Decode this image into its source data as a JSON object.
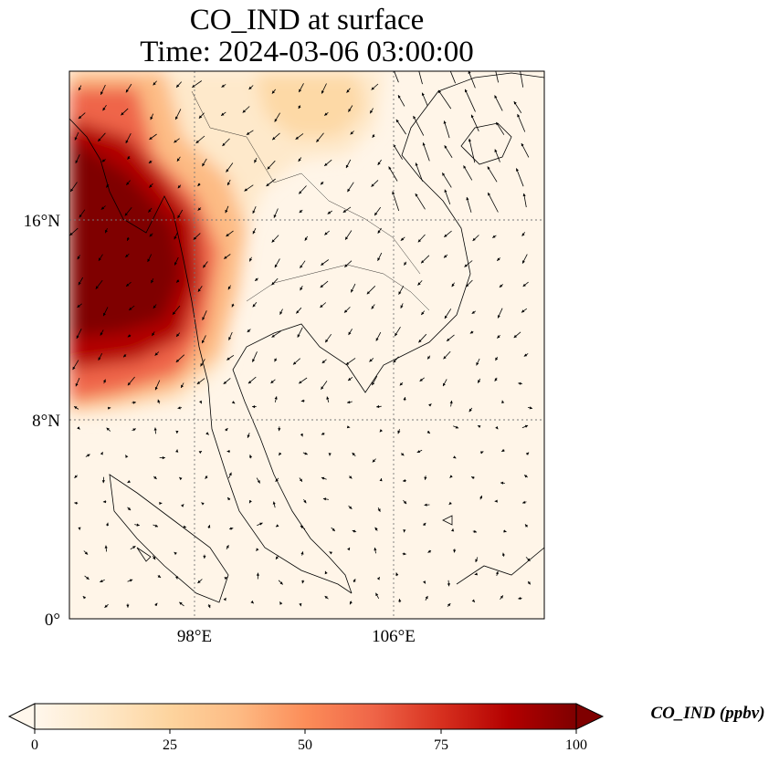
{
  "title": {
    "line1": "CO_IND at surface",
    "line2": "Time: 2024-03-06 03:00:00"
  },
  "axes": {
    "lat_ticks": [
      "16°N",
      "8°N",
      "0°"
    ],
    "lon_ticks": [
      "98°E",
      "106°E"
    ]
  },
  "colorbar": {
    "label": "CO_IND (ppbv)",
    "ticks": [
      "0",
      "25",
      "50",
      "75",
      "100"
    ],
    "min": 0,
    "max": 100,
    "colormap": "OrRd",
    "colors": [
      "#fff7ec",
      "#fee8c8",
      "#fdd49e",
      "#fdbb84",
      "#fc8d59",
      "#ef6548",
      "#d7301f",
      "#b30000",
      "#7f0000"
    ],
    "extend": "both"
  },
  "map": {
    "projection": "PlateCarree",
    "extent_lon": [
      93,
      112
    ],
    "extent_lat": [
      0,
      22
    ],
    "gridlines": "dotted",
    "coastlines": true,
    "country_borders": true,
    "wind_vectors": true
  }
}
